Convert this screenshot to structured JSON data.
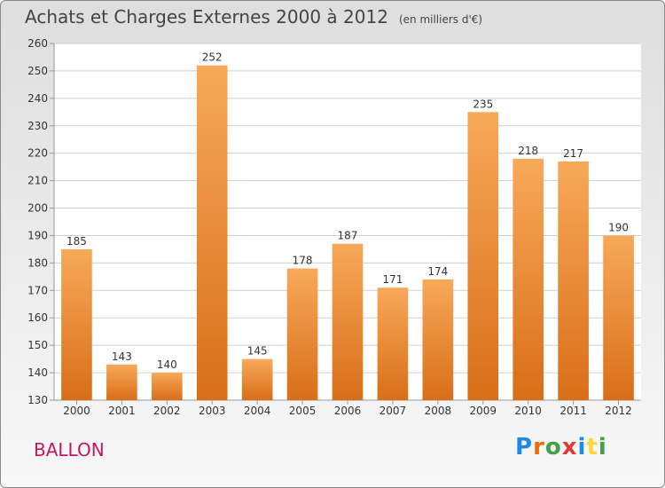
{
  "title": "Achats et Charges Externes 2000 à 2012",
  "subtitle": "(en milliers d'€)",
  "place": "BALLON",
  "logo": {
    "text": "Proxiti",
    "letters": [
      "P",
      "r",
      "o",
      "x",
      "i",
      "t",
      "i"
    ],
    "colors": [
      "#1e88e5",
      "#ef6c00",
      "#43a047",
      "#e53935",
      "#1e88e5",
      "#fdd835",
      "#43a047"
    ]
  },
  "colors": {
    "bar_top": "#f7a95a",
    "bar_bottom": "#d96e18",
    "grid": "#cfcfcf",
    "axis": "#9a9a9a",
    "text": "#333333"
  },
  "chart_data": {
    "type": "bar",
    "categories": [
      "2000",
      "2001",
      "2002",
      "2003",
      "2004",
      "2005",
      "2006",
      "2007",
      "2008",
      "2009",
      "2010",
      "2011",
      "2012"
    ],
    "values": [
      185,
      143,
      140,
      252,
      145,
      178,
      187,
      171,
      174,
      235,
      218,
      217,
      190
    ],
    "ylim": [
      130,
      260
    ],
    "yticks": [
      130,
      140,
      150,
      160,
      170,
      180,
      190,
      200,
      210,
      220,
      230,
      240,
      250,
      260
    ],
    "grid": true,
    "xlabel": "",
    "ylabel": ""
  }
}
